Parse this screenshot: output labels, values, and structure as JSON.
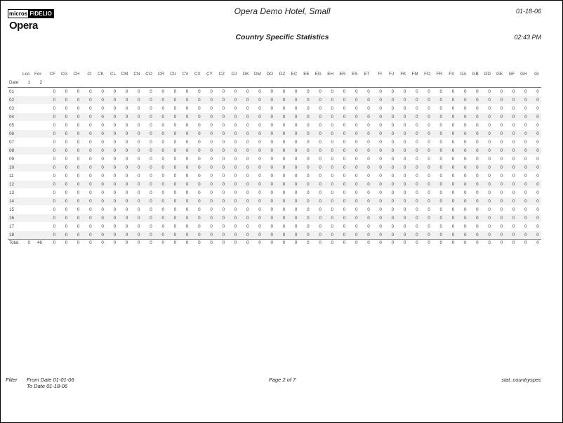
{
  "header": {
    "logo_micros": "micros",
    "logo_fidelio": "FIDELIO",
    "logo_opera": "Opera",
    "hotel": "Opera Demo Hotel, Small",
    "date": "01-18-06",
    "title": "Country Specific Statistics",
    "time": "02:43 PM"
  },
  "table": {
    "date_label": "Date",
    "loc_label": "Loc.",
    "loc_sub": "1",
    "for_label": "For.",
    "for_sub": "2",
    "countries": [
      "CF",
      "CG",
      "CH",
      "CI",
      "CK",
      "CL",
      "CM",
      "CN",
      "CO",
      "CR",
      "CU",
      "CV",
      "CX",
      "CY",
      "CZ",
      "DJ",
      "DK",
      "DM",
      "DO",
      "DZ",
      "EC",
      "EE",
      "EG",
      "EH",
      "ER",
      "ES",
      "ET",
      "FI",
      "FJ",
      "FK",
      "FM",
      "FO",
      "FR",
      "FX",
      "GA",
      "GB",
      "GD",
      "GE",
      "GF",
      "GH",
      "GI"
    ],
    "rows": [
      {
        "date": "01",
        "loc": "",
        "for": "",
        "values": [
          0,
          0,
          0,
          0,
          0,
          0,
          0,
          0,
          0,
          0,
          0,
          0,
          0,
          0,
          0,
          0,
          0,
          0,
          0,
          0,
          0,
          0,
          0,
          0,
          0,
          0,
          0,
          0,
          0,
          0,
          0,
          0,
          0,
          0,
          0,
          0,
          0,
          0,
          0,
          0,
          0
        ]
      },
      {
        "date": "02",
        "loc": "",
        "for": "",
        "values": [
          0,
          0,
          0,
          0,
          0,
          0,
          0,
          0,
          0,
          0,
          0,
          0,
          0,
          0,
          0,
          0,
          0,
          0,
          0,
          0,
          0,
          0,
          0,
          0,
          0,
          0,
          0,
          0,
          0,
          0,
          0,
          0,
          0,
          0,
          0,
          0,
          0,
          0,
          0,
          0,
          0
        ]
      },
      {
        "date": "03",
        "loc": "",
        "for": "",
        "values": [
          0,
          0,
          0,
          0,
          0,
          0,
          0,
          0,
          0,
          0,
          0,
          0,
          0,
          0,
          0,
          0,
          0,
          0,
          0,
          0,
          0,
          0,
          0,
          0,
          0,
          0,
          0,
          0,
          0,
          0,
          0,
          0,
          0,
          0,
          0,
          0,
          0,
          0,
          0,
          0,
          0
        ]
      },
      {
        "date": "04",
        "loc": "",
        "for": "",
        "values": [
          0,
          0,
          0,
          0,
          0,
          0,
          0,
          0,
          0,
          0,
          0,
          0,
          0,
          0,
          0,
          0,
          0,
          0,
          0,
          0,
          0,
          0,
          0,
          0,
          0,
          0,
          0,
          0,
          0,
          0,
          0,
          0,
          0,
          0,
          0,
          0,
          0,
          0,
          0,
          0,
          0
        ]
      },
      {
        "date": "05",
        "loc": "",
        "for": "",
        "values": [
          0,
          0,
          0,
          0,
          0,
          0,
          0,
          0,
          0,
          0,
          0,
          0,
          0,
          0,
          0,
          0,
          0,
          0,
          0,
          0,
          0,
          0,
          0,
          0,
          0,
          0,
          0,
          0,
          0,
          0,
          0,
          0,
          0,
          0,
          0,
          0,
          0,
          0,
          0,
          0,
          0
        ]
      },
      {
        "date": "06",
        "loc": "",
        "for": "",
        "values": [
          0,
          0,
          0,
          0,
          0,
          0,
          0,
          0,
          0,
          0,
          0,
          0,
          0,
          0,
          0,
          0,
          0,
          0,
          0,
          0,
          0,
          0,
          0,
          0,
          0,
          0,
          0,
          0,
          0,
          0,
          0,
          0,
          0,
          0,
          0,
          0,
          0,
          0,
          0,
          0,
          0
        ]
      },
      {
        "date": "07",
        "loc": "",
        "for": "",
        "values": [
          0,
          0,
          0,
          0,
          0,
          0,
          0,
          0,
          0,
          0,
          0,
          0,
          0,
          0,
          0,
          0,
          0,
          0,
          0,
          0,
          0,
          0,
          0,
          0,
          0,
          0,
          0,
          0,
          0,
          0,
          0,
          0,
          0,
          0,
          0,
          0,
          0,
          0,
          0,
          0,
          0
        ]
      },
      {
        "date": "08",
        "loc": "",
        "for": "",
        "values": [
          0,
          0,
          0,
          0,
          0,
          0,
          0,
          0,
          0,
          0,
          0,
          0,
          0,
          0,
          0,
          0,
          0,
          0,
          0,
          0,
          0,
          0,
          0,
          0,
          0,
          0,
          0,
          0,
          0,
          0,
          0,
          0,
          0,
          0,
          0,
          0,
          0,
          0,
          0,
          0,
          0
        ]
      },
      {
        "date": "09",
        "loc": "",
        "for": "",
        "values": [
          0,
          0,
          0,
          0,
          0,
          0,
          0,
          0,
          0,
          0,
          0,
          0,
          0,
          0,
          0,
          0,
          0,
          0,
          0,
          0,
          0,
          0,
          0,
          0,
          0,
          0,
          0,
          0,
          0,
          0,
          0,
          0,
          0,
          0,
          0,
          0,
          0,
          0,
          0,
          0,
          0
        ]
      },
      {
        "date": "10",
        "loc": "",
        "for": "",
        "values": [
          0,
          0,
          0,
          0,
          0,
          0,
          0,
          0,
          0,
          0,
          0,
          0,
          0,
          0,
          0,
          0,
          0,
          0,
          0,
          0,
          0,
          0,
          0,
          0,
          0,
          0,
          0,
          0,
          0,
          0,
          0,
          0,
          0,
          0,
          0,
          0,
          0,
          0,
          0,
          0,
          0
        ]
      },
      {
        "date": "11",
        "loc": "",
        "for": "",
        "values": [
          0,
          0,
          0,
          0,
          0,
          0,
          0,
          0,
          0,
          0,
          0,
          0,
          0,
          0,
          0,
          0,
          0,
          0,
          0,
          0,
          0,
          0,
          0,
          0,
          0,
          0,
          0,
          0,
          0,
          0,
          0,
          0,
          0,
          0,
          0,
          0,
          0,
          0,
          0,
          0,
          0
        ]
      },
      {
        "date": "12",
        "loc": "",
        "for": "",
        "values": [
          0,
          0,
          0,
          0,
          0,
          0,
          0,
          0,
          0,
          0,
          0,
          0,
          0,
          0,
          0,
          0,
          0,
          0,
          0,
          0,
          0,
          0,
          0,
          0,
          0,
          0,
          0,
          0,
          0,
          0,
          0,
          0,
          0,
          0,
          0,
          0,
          0,
          0,
          0,
          0,
          0
        ]
      },
      {
        "date": "13",
        "loc": "",
        "for": "",
        "values": [
          0,
          0,
          0,
          0,
          0,
          0,
          0,
          0,
          0,
          0,
          0,
          0,
          0,
          0,
          0,
          0,
          0,
          0,
          0,
          0,
          0,
          0,
          0,
          0,
          0,
          0,
          0,
          0,
          0,
          0,
          0,
          0,
          0,
          0,
          0,
          0,
          0,
          0,
          0,
          0,
          0
        ]
      },
      {
        "date": "14",
        "loc": "",
        "for": "",
        "values": [
          0,
          0,
          0,
          0,
          0,
          0,
          0,
          0,
          0,
          0,
          0,
          0,
          0,
          0,
          0,
          0,
          0,
          0,
          0,
          0,
          0,
          0,
          0,
          0,
          0,
          0,
          0,
          0,
          0,
          0,
          0,
          0,
          0,
          0,
          0,
          0,
          0,
          0,
          0,
          0,
          0
        ]
      },
      {
        "date": "15",
        "loc": "",
        "for": "",
        "values": [
          0,
          0,
          0,
          0,
          0,
          0,
          0,
          0,
          0,
          0,
          0,
          0,
          0,
          0,
          0,
          0,
          0,
          0,
          0,
          0,
          0,
          0,
          0,
          0,
          0,
          0,
          0,
          0,
          0,
          0,
          0,
          0,
          0,
          0,
          0,
          0,
          0,
          0,
          0,
          0,
          0
        ]
      },
      {
        "date": "16",
        "loc": "",
        "for": "",
        "values": [
          0,
          0,
          0,
          0,
          0,
          0,
          0,
          0,
          0,
          0,
          0,
          0,
          0,
          0,
          0,
          0,
          0,
          0,
          0,
          0,
          0,
          0,
          0,
          0,
          0,
          0,
          0,
          0,
          0,
          0,
          0,
          0,
          0,
          0,
          0,
          0,
          0,
          0,
          0,
          0,
          0
        ]
      },
      {
        "date": "17",
        "loc": "",
        "for": "",
        "values": [
          0,
          0,
          0,
          0,
          0,
          0,
          0,
          0,
          0,
          0,
          0,
          0,
          0,
          0,
          0,
          0,
          0,
          0,
          0,
          0,
          0,
          0,
          0,
          0,
          0,
          0,
          0,
          0,
          0,
          0,
          0,
          0,
          0,
          0,
          0,
          0,
          0,
          0,
          0,
          0,
          0
        ]
      },
      {
        "date": "18",
        "loc": "",
        "for": "",
        "values": [
          0,
          0,
          0,
          0,
          0,
          0,
          0,
          0,
          0,
          0,
          0,
          0,
          0,
          0,
          0,
          0,
          0,
          0,
          0,
          0,
          0,
          0,
          0,
          0,
          0,
          0,
          0,
          0,
          0,
          0,
          0,
          0,
          0,
          0,
          0,
          0,
          0,
          0,
          0,
          0,
          0
        ]
      }
    ],
    "total": {
      "date": "Total",
      "loc": "0",
      "for": "46",
      "values": [
        0,
        0,
        0,
        0,
        0,
        0,
        0,
        0,
        0,
        0,
        0,
        0,
        0,
        0,
        0,
        0,
        0,
        0,
        0,
        0,
        0,
        0,
        0,
        0,
        0,
        0,
        0,
        0,
        0,
        0,
        0,
        0,
        0,
        0,
        0,
        0,
        0,
        0,
        0,
        0,
        0
      ]
    }
  },
  "footer": {
    "filter_label": "Filter",
    "from_date": "From Date 01-01-06",
    "to_date": "To Date 01-18-06",
    "page": "Page 2 of 7",
    "report_name": "stat_countryspec"
  }
}
